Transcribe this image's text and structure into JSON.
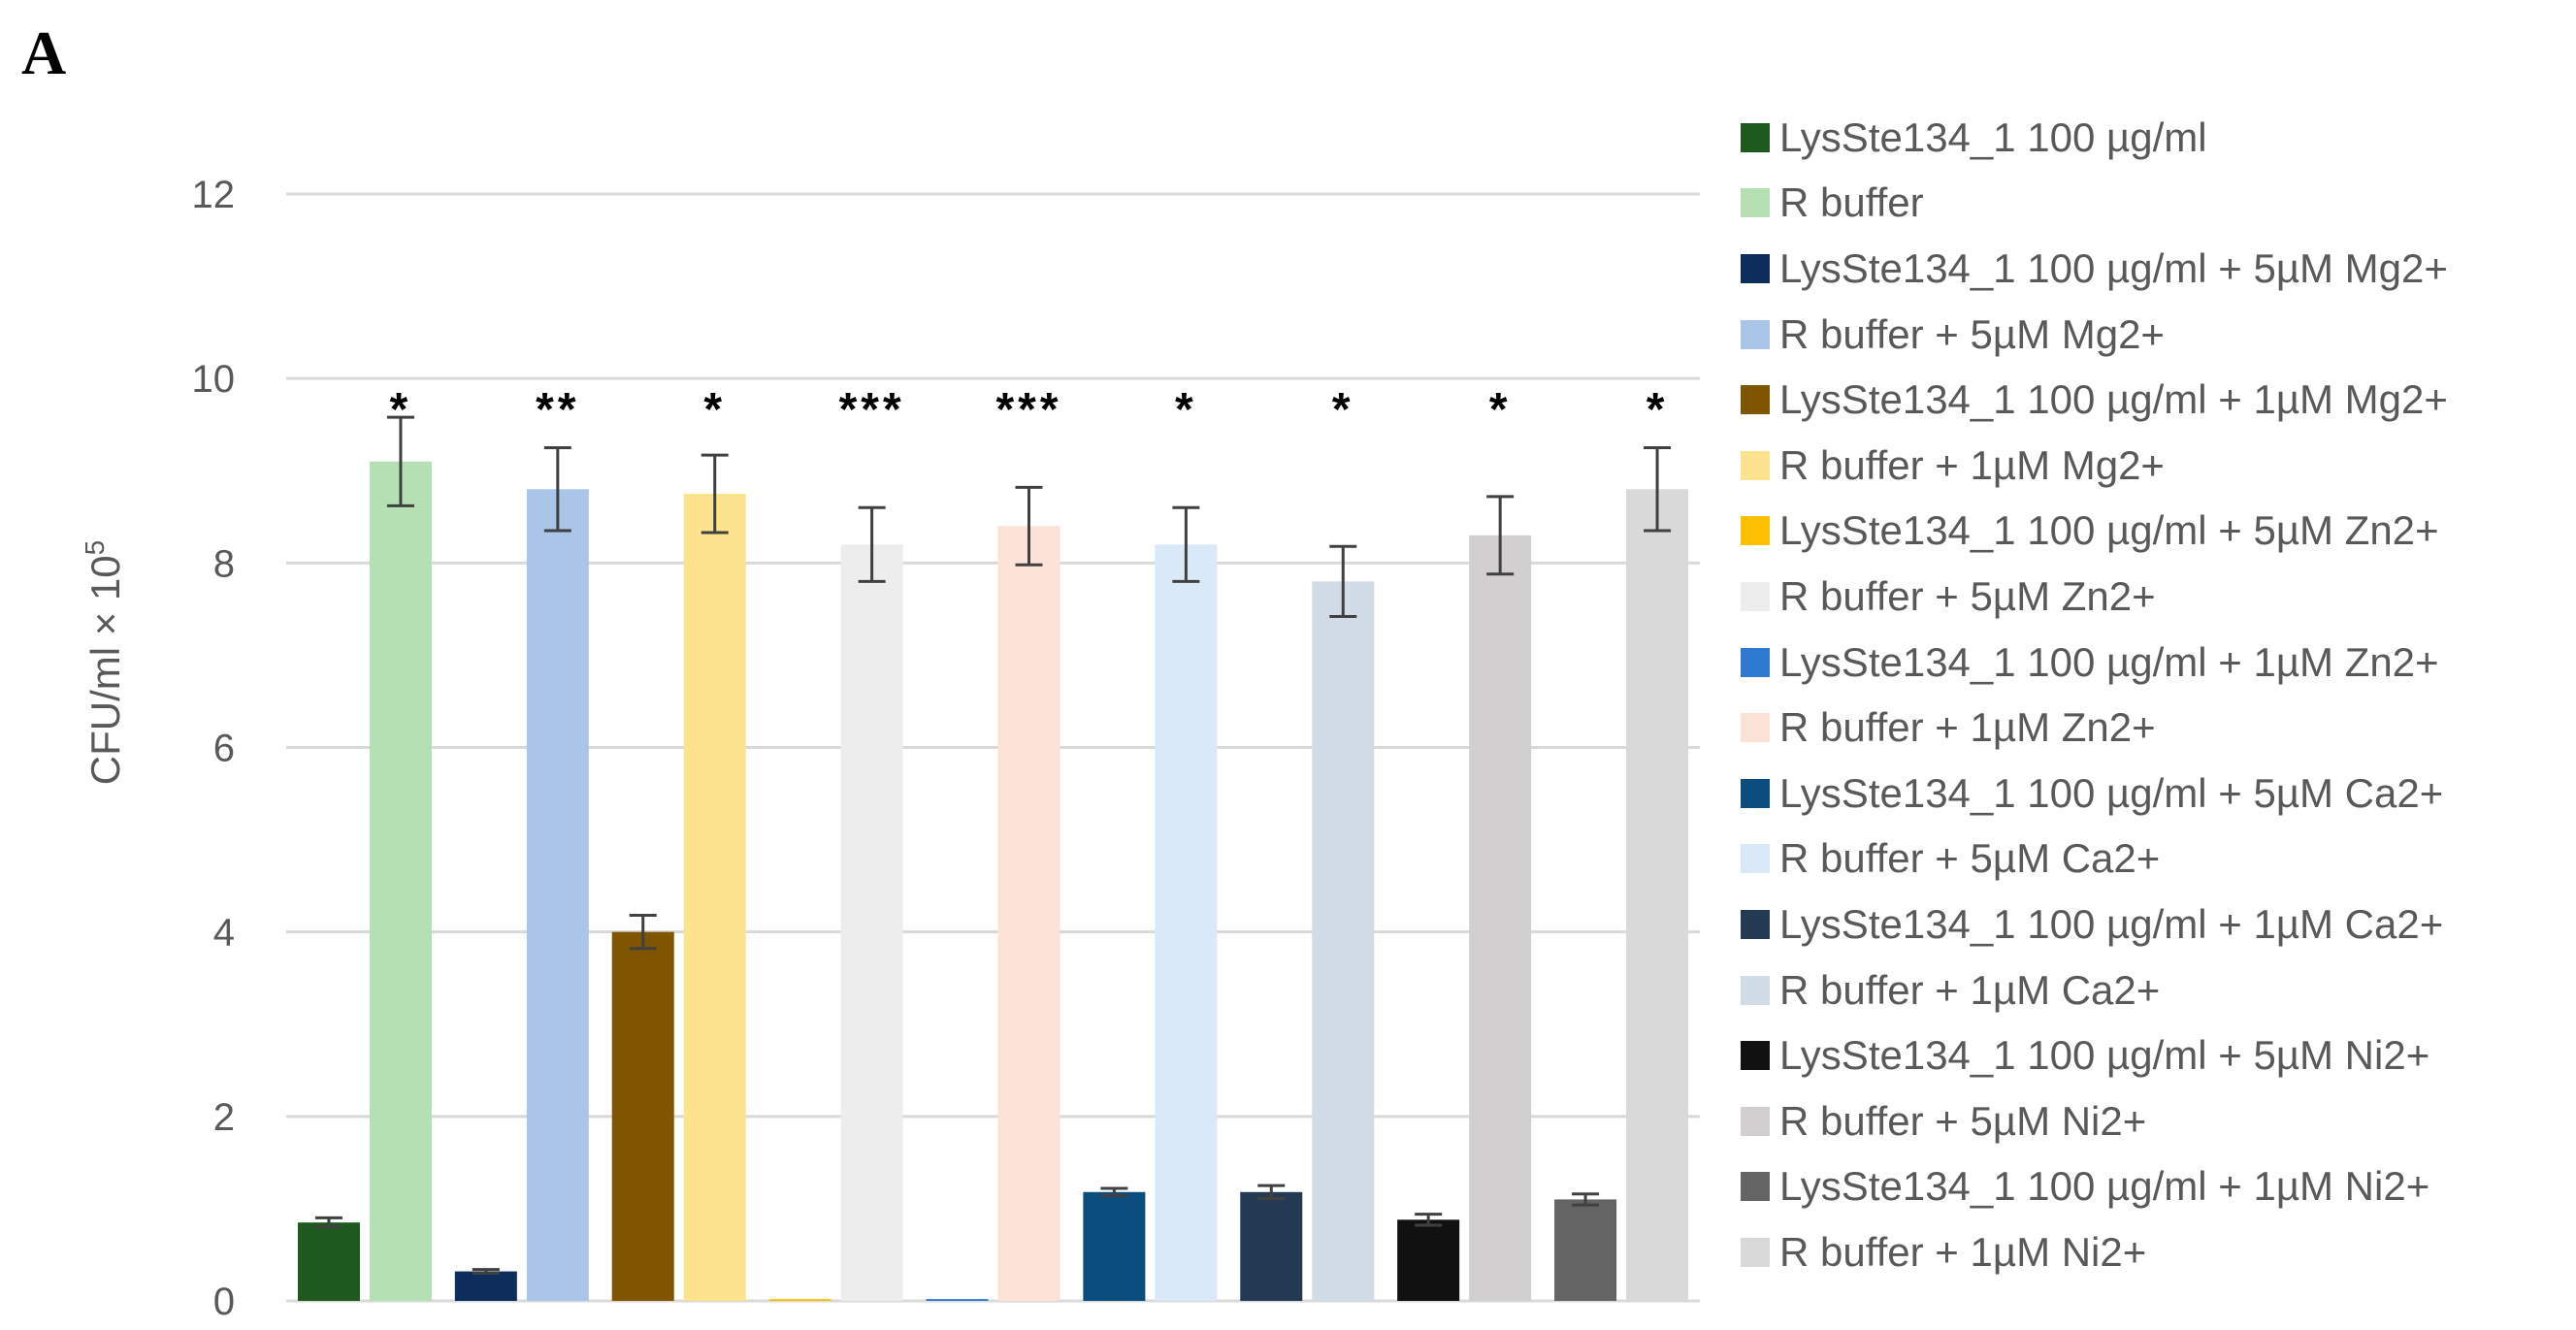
{
  "panel_label": "A",
  "chart_data": {
    "type": "bar",
    "title": "",
    "xlabel": "",
    "ylabel": "CFU/ml × 10",
    "ylabel_superscript": "5",
    "ylim": [
      0,
      12
    ],
    "yticks": [
      0,
      2,
      4,
      6,
      8,
      10,
      12
    ],
    "grid": true,
    "legend_position": "right",
    "series": [
      {
        "name": "LysSte134_1 100 µg/ml",
        "value": 0.85,
        "error": 0.05,
        "color": "#1e5a1e",
        "significance": ""
      },
      {
        "name": "R buffer",
        "value": 9.1,
        "error": 0.48,
        "color": "#b5e0b3",
        "significance": "*"
      },
      {
        "name": "LysSte134_1 100 µg/ml + 5µM Mg2+",
        "value": 0.32,
        "error": 0.02,
        "color": "#0d2e5c",
        "significance": ""
      },
      {
        "name": "R buffer + 5µM Mg2+",
        "value": 8.8,
        "error": 0.45,
        "color": "#a9c5e8",
        "significance": "**"
      },
      {
        "name": "LysSte134_1 100 µg/ml + 1µM Mg2+",
        "value": 4.0,
        "error": 0.18,
        "color": "#7f5500",
        "significance": ""
      },
      {
        "name": "R buffer + 1µM Mg2+",
        "value": 8.75,
        "error": 0.42,
        "color": "#fde38d",
        "significance": "*"
      },
      {
        "name": "LysSte134_1 100 µg/ml + 5µM Zn2+",
        "value": 0.02,
        "error": 0.0,
        "color": "#ffc000",
        "significance": ""
      },
      {
        "name": "R buffer + 5µM Zn2+",
        "value": 8.2,
        "error": 0.4,
        "color": "#ededed",
        "significance": "***"
      },
      {
        "name": "LysSte134_1 100 µg/ml + 1µM Zn2+",
        "value": 0.02,
        "error": 0.0,
        "color": "#2e7ad1",
        "significance": ""
      },
      {
        "name": "R buffer + 1µM Zn2+",
        "value": 8.4,
        "error": 0.42,
        "color": "#fde2d7",
        "significance": "***"
      },
      {
        "name": "LysSte134_1 100 µg/ml + 5µM Ca2+",
        "value": 1.18,
        "error": 0.04,
        "color": "#0b4d7e",
        "significance": ""
      },
      {
        "name": "R buffer + 5µM Ca2+",
        "value": 8.2,
        "error": 0.4,
        "color": "#d9e9f7",
        "significance": "*"
      },
      {
        "name": "LysSte134_1 100 µg/ml + 1µM Ca2+",
        "value": 1.18,
        "error": 0.07,
        "color": "#243a52",
        "significance": ""
      },
      {
        "name": "R buffer + 1µM Ca2+",
        "value": 7.8,
        "error": 0.38,
        "color": "#d2dce6",
        "significance": "*"
      },
      {
        "name": "LysSte134_1 100 µg/ml + 5µM Ni2+",
        "value": 0.88,
        "error": 0.06,
        "color": "#111111",
        "significance": ""
      },
      {
        "name": "R buffer + 5µM Ni2+",
        "value": 8.3,
        "error": 0.42,
        "color": "#d1cfcf",
        "significance": "*"
      },
      {
        "name": "LysSte134_1 100 µg/ml + 1µM Ni2+",
        "value": 1.1,
        "error": 0.06,
        "color": "#646464",
        "significance": ""
      },
      {
        "name": "R buffer + 1µM Ni2+",
        "value": 8.8,
        "error": 0.45,
        "color": "#d9d9d9",
        "significance": "*"
      }
    ]
  },
  "colors": {
    "gridline": "#d9d9d9",
    "errorbar": "#404040",
    "text": "#595959"
  }
}
